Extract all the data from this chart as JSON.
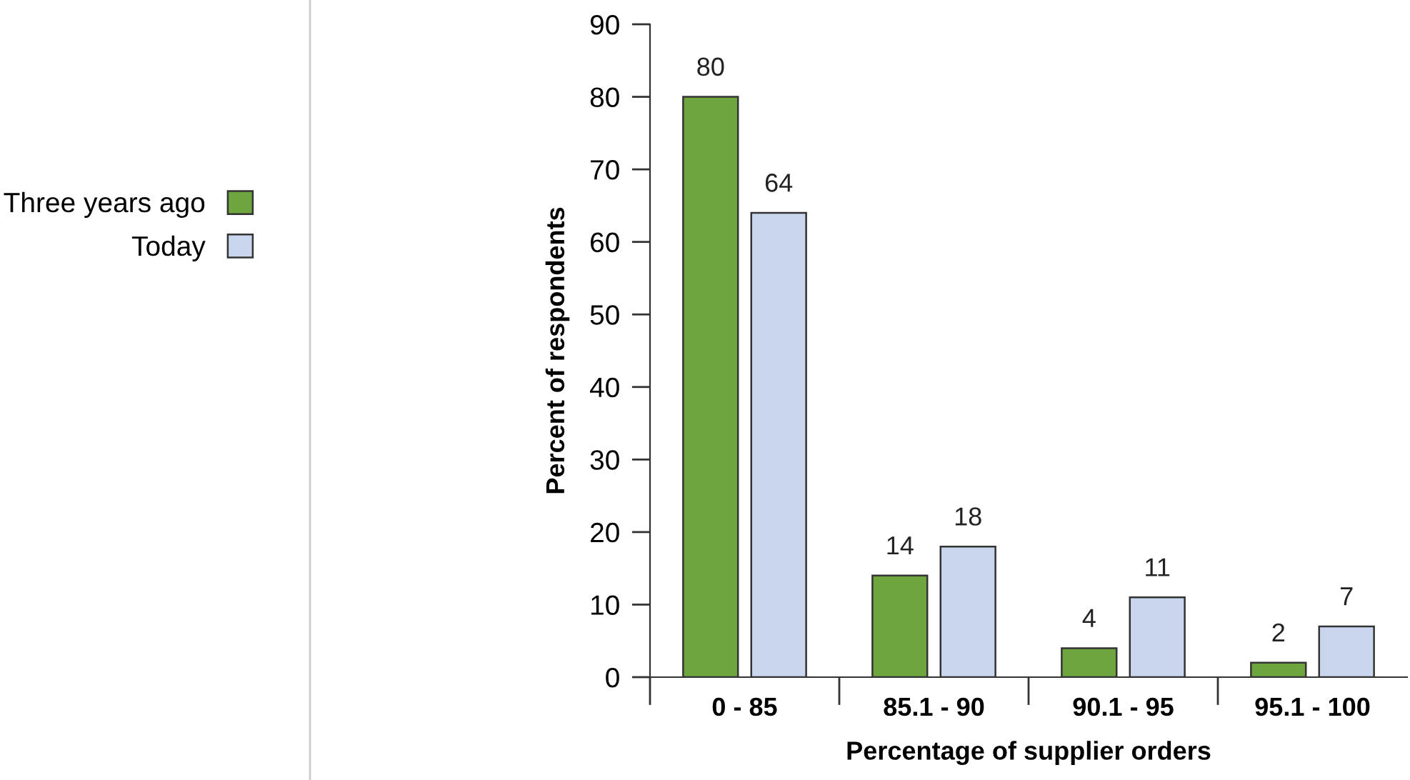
{
  "chart_data": {
    "type": "bar",
    "xlabel": "Percentage of supplier orders",
    "ylabel": "Percent of respondents",
    "categories": [
      "0 - 85",
      "85.1 - 90",
      "90.1 - 95",
      "95.1 - 100"
    ],
    "series": [
      {
        "name": "Three years ago",
        "color": "#6fa53f",
        "values": [
          80,
          14,
          4,
          2
        ]
      },
      {
        "name": "Today",
        "color": "#c9d6ee",
        "values": [
          64,
          18,
          11,
          7
        ]
      }
    ],
    "ylim": [
      0,
      90
    ],
    "yticks": [
      0,
      10,
      20,
      30,
      40,
      50,
      60,
      70,
      80,
      90
    ],
    "data_labels": true,
    "grid": false,
    "legend": "left"
  }
}
